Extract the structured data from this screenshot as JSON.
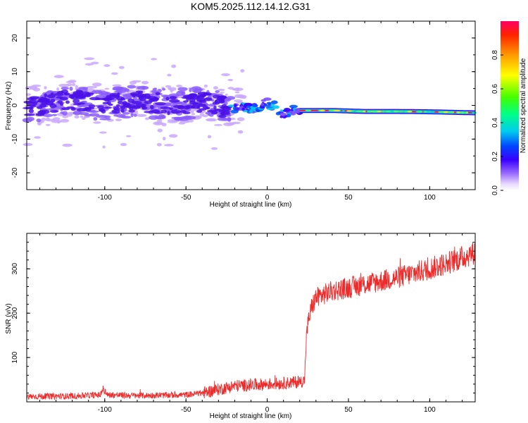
{
  "title": "KOM5.2025.112.14.12.G31",
  "chart_data": [
    {
      "type": "heatmap",
      "xlabel": "Height of straight line (km)",
      "ylabel": "Frequency (Hz)",
      "xlim": [
        -148,
        128
      ],
      "ylim": [
        -25,
        25
      ],
      "xticks": [
        -100,
        -50,
        0,
        50,
        100
      ],
      "yticks": [
        -20,
        -10,
        0,
        10,
        20
      ],
      "colorbar": {
        "label": "Normalized spectral amplitude",
        "range": [
          0,
          1
        ],
        "ticks": [
          0.0,
          0.2,
          0.4,
          0.6,
          0.8
        ]
      },
      "ridge": {
        "description_points_x": [
          -148,
          -120,
          -100,
          -80,
          -60,
          -40,
          -25,
          -10,
          0,
          5,
          10,
          15,
          20,
          40,
          60,
          80,
          100,
          128
        ],
        "description_points_y": [
          -0.5,
          1.5,
          0,
          1.5,
          0,
          1,
          -0.5,
          -1,
          0.5,
          -0.5,
          -2.5,
          -1.5,
          -1.5,
          -1.5,
          -1.8,
          -1.8,
          -1.9,
          -2.2
        ],
        "x_noise_end": -22,
        "x_strong_start": 20
      }
    },
    {
      "type": "line",
      "xlabel": "Height of straight line (km)",
      "ylabel": "SNR (v/v)",
      "xlim": [
        -148,
        128
      ],
      "ylim": [
        0,
        380
      ],
      "xticks": [
        -100,
        -50,
        0,
        50,
        100
      ],
      "yticks": [
        100,
        200,
        300
      ],
      "color": "#ee2b2b",
      "series_trend": {
        "x": [
          -148,
          -120,
          -100,
          -80,
          -60,
          -50,
          -40,
          -30,
          -20,
          -10,
          0,
          10,
          20,
          23,
          24,
          25,
          27,
          30,
          40,
          60,
          80,
          100,
          110,
          120,
          128
        ],
        "y": [
          12,
          13,
          16,
          14,
          15,
          16,
          20,
          28,
          36,
          38,
          40,
          42,
          45,
          48,
          140,
          175,
          210,
          235,
          250,
          265,
          280,
          300,
          312,
          325,
          338
        ]
      }
    }
  ]
}
